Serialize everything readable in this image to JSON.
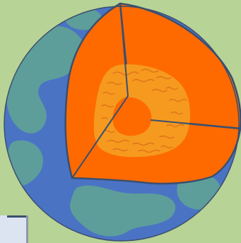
{
  "image": {
    "subject": "earth-cross-section",
    "layers": [
      {
        "name": "crust",
        "color": "#4a73c4"
      },
      {
        "name": "continents",
        "color": "#5d9e9a"
      },
      {
        "name": "mantle",
        "color": "#ff6a00"
      },
      {
        "name": "outer-core",
        "color": "#f59a1e"
      },
      {
        "name": "inner-core",
        "color": "#ff6a00"
      }
    ],
    "background": "#b8d396",
    "outline": "#3b4f6e",
    "corner_patch": "#dde4f1"
  }
}
